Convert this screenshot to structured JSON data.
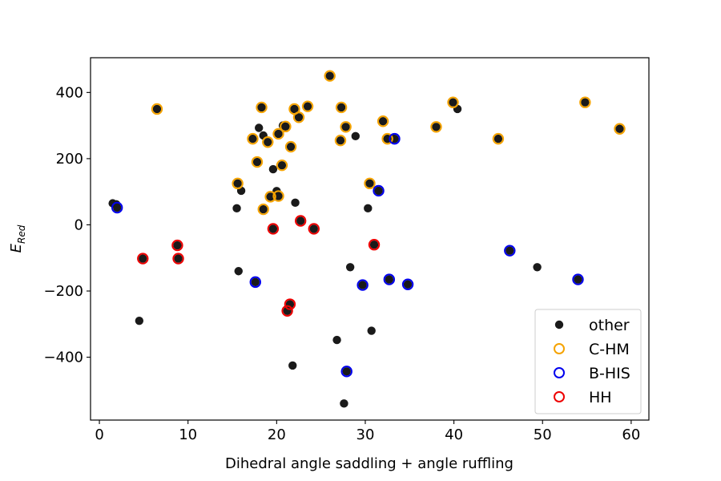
{
  "chart_data": {
    "type": "scatter",
    "xlabel": "Dihedral angle saddling + angle ruffling",
    "ylabel": "E",
    "ylabel_subscript": "Red",
    "xlim": [
      -1,
      62
    ],
    "ylim": [
      -590,
      505
    ],
    "xticks": [
      0,
      10,
      20,
      30,
      40,
      50,
      60
    ],
    "yticks": [
      -400,
      -200,
      0,
      200,
      400
    ],
    "ytick_labels": [
      "−400",
      "−200",
      "0",
      "200",
      "400"
    ],
    "grid": false,
    "legend_position": "lower-right",
    "series": [
      {
        "name": "other",
        "marker": "filled",
        "color": "#1a1a1a",
        "points": [
          [
            1.5,
            65
          ],
          [
            1.9,
            62
          ],
          [
            2.0,
            52
          ],
          [
            4.5,
            -290
          ],
          [
            6.5,
            350
          ],
          [
            8.8,
            -62
          ],
          [
            8.9,
            -102
          ],
          [
            4.9,
            -102
          ],
          [
            15.5,
            50
          ],
          [
            15.6,
            125
          ],
          [
            15.7,
            -140
          ],
          [
            16.0,
            103
          ],
          [
            17.3,
            260
          ],
          [
            17.6,
            -173
          ],
          [
            17.8,
            190
          ],
          [
            18.0,
            293
          ],
          [
            18.3,
            355
          ],
          [
            18.5,
            270
          ],
          [
            18.5,
            47
          ],
          [
            19.0,
            250
          ],
          [
            19.3,
            85
          ],
          [
            19.6,
            168
          ],
          [
            19.6,
            -12
          ],
          [
            20.0,
            102
          ],
          [
            20.2,
            275
          ],
          [
            20.2,
            87
          ],
          [
            20.6,
            180
          ],
          [
            20.7,
            300
          ],
          [
            21.0,
            297
          ],
          [
            21.2,
            -260
          ],
          [
            21.5,
            -240
          ],
          [
            21.6,
            236
          ],
          [
            21.8,
            -425
          ],
          [
            22.0,
            350
          ],
          [
            22.1,
            67
          ],
          [
            22.5,
            325
          ],
          [
            22.7,
            12
          ],
          [
            23.5,
            358
          ],
          [
            24.2,
            -12
          ],
          [
            26.0,
            450
          ],
          [
            26.8,
            -348
          ],
          [
            27.2,
            255
          ],
          [
            27.3,
            355
          ],
          [
            27.6,
            -540
          ],
          [
            27.8,
            296
          ],
          [
            27.9,
            -443
          ],
          [
            28.3,
            -128
          ],
          [
            28.9,
            268
          ],
          [
            29.7,
            -182
          ],
          [
            30.3,
            50
          ],
          [
            30.5,
            125
          ],
          [
            30.7,
            -320
          ],
          [
            31.0,
            -60
          ],
          [
            31.5,
            103
          ],
          [
            32.0,
            313
          ],
          [
            32.5,
            260
          ],
          [
            32.7,
            -165
          ],
          [
            33.1,
            260
          ],
          [
            33.3,
            260
          ],
          [
            34.8,
            -180
          ],
          [
            38.0,
            296
          ],
          [
            39.9,
            370
          ],
          [
            40.4,
            350
          ],
          [
            45.0,
            260
          ],
          [
            46.3,
            -78
          ],
          [
            49.4,
            -128
          ],
          [
            54.0,
            -165
          ],
          [
            54.8,
            370
          ],
          [
            58.7,
            290
          ]
        ]
      },
      {
        "name": "C-HM",
        "marker": "ring",
        "color": "#f5a300",
        "points": [
          [
            6.5,
            350
          ],
          [
            15.6,
            125
          ],
          [
            17.3,
            260
          ],
          [
            17.8,
            190
          ],
          [
            18.3,
            355
          ],
          [
            18.5,
            47
          ],
          [
            19.0,
            250
          ],
          [
            19.3,
            85
          ],
          [
            20.2,
            275
          ],
          [
            20.2,
            87
          ],
          [
            20.6,
            180
          ],
          [
            21.0,
            297
          ],
          [
            21.6,
            236
          ],
          [
            22.0,
            350
          ],
          [
            22.5,
            325
          ],
          [
            23.5,
            358
          ],
          [
            26.0,
            450
          ],
          [
            27.2,
            255
          ],
          [
            27.3,
            355
          ],
          [
            27.8,
            296
          ],
          [
            30.5,
            125
          ],
          [
            32.0,
            313
          ],
          [
            32.5,
            260
          ],
          [
            38.0,
            296
          ],
          [
            39.9,
            370
          ],
          [
            45.0,
            260
          ],
          [
            54.8,
            370
          ],
          [
            58.7,
            290
          ]
        ]
      },
      {
        "name": "B-HIS",
        "marker": "ring",
        "color": "#0000ee",
        "points": [
          [
            2.0,
            52
          ],
          [
            17.6,
            -173
          ],
          [
            27.9,
            -443
          ],
          [
            29.7,
            -182
          ],
          [
            31.5,
            103
          ],
          [
            32.7,
            -165
          ],
          [
            33.3,
            260
          ],
          [
            34.8,
            -180
          ],
          [
            46.3,
            -78
          ],
          [
            54.0,
            -165
          ]
        ]
      },
      {
        "name": "HH",
        "marker": "ring",
        "color": "#ee0000",
        "points": [
          [
            4.9,
            -102
          ],
          [
            8.8,
            -62
          ],
          [
            8.9,
            -102
          ],
          [
            19.6,
            -12
          ],
          [
            21.2,
            -260
          ],
          [
            21.5,
            -240
          ],
          [
            22.7,
            12
          ],
          [
            24.2,
            -12
          ],
          [
            31.0,
            -60
          ]
        ]
      }
    ]
  }
}
